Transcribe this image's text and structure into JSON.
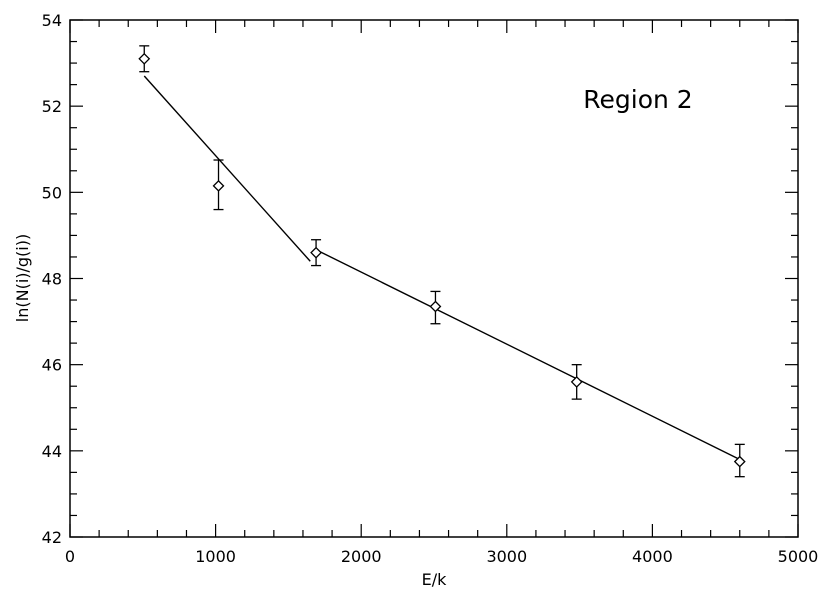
{
  "chart_data": {
    "type": "scatter",
    "title": "",
    "xlabel": "E/k",
    "ylabel": "ln(N(i)/g(i))",
    "xlim": [
      0,
      5000
    ],
    "ylim": [
      42,
      54
    ],
    "x_ticks": [
      0,
      1000,
      2000,
      3000,
      4000,
      5000
    ],
    "y_ticks": [
      42,
      44,
      46,
      48,
      50,
      52,
      54
    ],
    "annotation": "Region 2",
    "grid": false,
    "legend": "none",
    "series": [
      {
        "marker": "diamond",
        "points": [
          {
            "x": 510,
            "y": 53.1,
            "err_low": 52.8,
            "err_high": 53.4
          },
          {
            "x": 1020,
            "y": 50.15,
            "err_low": 49.6,
            "err_high": 50.75
          },
          {
            "x": 1690,
            "y": 48.6,
            "err_low": 48.3,
            "err_high": 48.9
          },
          {
            "x": 2510,
            "y": 47.35,
            "err_low": 46.95,
            "err_high": 47.7
          },
          {
            "x": 3480,
            "y": 45.6,
            "err_low": 45.2,
            "err_high": 46.0
          },
          {
            "x": 4600,
            "y": 43.75,
            "err_low": 43.4,
            "err_high": 44.15
          }
        ]
      }
    ],
    "fit_lines": [
      {
        "points": [
          {
            "x": 510,
            "y": 52.7
          },
          {
            "x": 1650,
            "y": 48.4
          }
        ]
      },
      {
        "points": [
          {
            "x": 1700,
            "y": 48.65
          },
          {
            "x": 4600,
            "y": 43.8
          }
        ]
      }
    ]
  }
}
